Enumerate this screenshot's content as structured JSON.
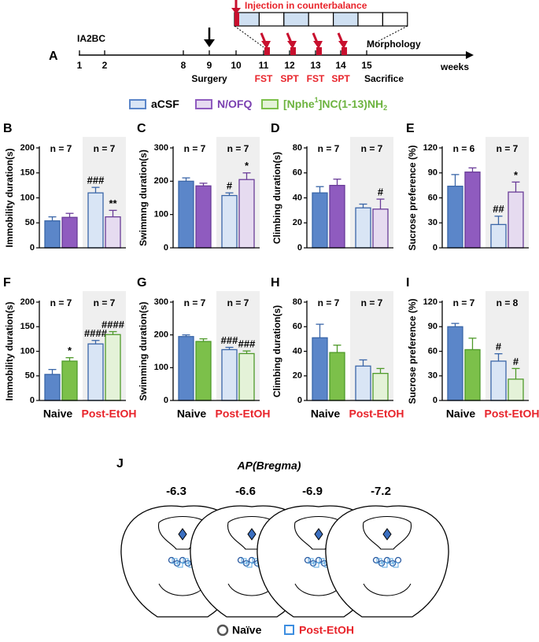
{
  "timeline": {
    "panel": "A",
    "start_label": "IA2BC",
    "weeks": [
      1,
      2,
      8,
      9,
      10,
      11,
      12,
      13,
      14,
      15
    ],
    "unit": "weeks",
    "injection": "Injection in counterbalance",
    "surgery": "Surgery",
    "sacrifice": "Sacrifice",
    "morphology": "Morphology",
    "tests": [
      "FST",
      "SPT",
      "FST",
      "SPT"
    ]
  },
  "legend": [
    {
      "name": [
        "aCSF"
      ],
      "shift": [
        "base"
      ],
      "color": "#5b86c9",
      "light": "#d9e5f5"
    },
    {
      "name": [
        "N/OFQ"
      ],
      "shift": [
        "base"
      ],
      "color": "#8f5bbf",
      "light": "#e6dbf0",
      "text_color": "#7a3fb0"
    },
    {
      "name": [
        "[Nphe",
        "1",
        "]NC(1-13)NH",
        "2"
      ],
      "shift": [
        "base",
        "super",
        "base",
        "sub"
      ],
      "color": "#7cc04a",
      "light": "#e4f2d8",
      "text_color": "#6db33f"
    }
  ],
  "chart_data": [
    {
      "type": "bar",
      "panel": "B",
      "ylabel": "Immobility duration(s)",
      "ylim": [
        0,
        200
      ],
      "yticks": [
        0,
        50,
        100,
        150,
        200
      ],
      "n_labels": [
        "n = 7",
        "n = 7"
      ],
      "series": [
        {
          "color": "#5b86c9",
          "light": "#d9e5f5",
          "edge": "#3a66a8",
          "values": [
            54,
            110
          ],
          "errors": [
            8,
            11
          ],
          "marks": [
            null,
            "###"
          ]
        },
        {
          "color": "#8f5bbf",
          "light": "#e6dbf0",
          "edge": "#6a3c98",
          "values": [
            61,
            62
          ],
          "errors": [
            8,
            13
          ],
          "marks": [
            null,
            "**"
          ]
        }
      ]
    },
    {
      "type": "bar",
      "panel": "C",
      "ylabel": "Swimmng duration(s)",
      "ylim": [
        0,
        300
      ],
      "yticks": [
        0,
        100,
        200,
        300
      ],
      "n_labels": [
        "n = 7",
        "n = 7"
      ],
      "series": [
        {
          "color": "#5b86c9",
          "light": "#d9e5f5",
          "edge": "#3a66a8",
          "values": [
            200,
            157
          ],
          "errors": [
            10,
            8
          ],
          "marks": [
            null,
            "#"
          ]
        },
        {
          "color": "#8f5bbf",
          "light": "#e6dbf0",
          "edge": "#6a3c98",
          "values": [
            186,
            205
          ],
          "errors": [
            8,
            20
          ],
          "marks": [
            null,
            "*"
          ]
        }
      ]
    },
    {
      "type": "bar",
      "panel": "D",
      "ylabel": "Climbing duration(s)",
      "ylim": [
        0,
        80
      ],
      "yticks": [
        0,
        20,
        40,
        60,
        80
      ],
      "n_labels": [
        "n = 7",
        "n = 7"
      ],
      "series": [
        {
          "color": "#5b86c9",
          "light": "#d9e5f5",
          "edge": "#3a66a8",
          "values": [
            44,
            32
          ],
          "errors": [
            5,
            3
          ],
          "marks": [
            null,
            null
          ]
        },
        {
          "color": "#8f5bbf",
          "light": "#e6dbf0",
          "edge": "#6a3c98",
          "values": [
            50,
            31
          ],
          "errors": [
            5,
            8
          ],
          "marks": [
            null,
            "#"
          ]
        }
      ]
    },
    {
      "type": "bar",
      "panel": "E",
      "ylabel": "Sucrose preference (%)",
      "ylim": [
        0,
        120
      ],
      "yticks": [
        0,
        30,
        60,
        90,
        120
      ],
      "n_labels": [
        "n = 6",
        "n = 7"
      ],
      "series": [
        {
          "color": "#5b86c9",
          "light": "#d9e5f5",
          "edge": "#3a66a8",
          "values": [
            74,
            28
          ],
          "errors": [
            14,
            10
          ],
          "marks": [
            null,
            "##"
          ]
        },
        {
          "color": "#8f5bbf",
          "light": "#e6dbf0",
          "edge": "#6a3c98",
          "values": [
            91,
            67
          ],
          "errors": [
            5,
            12
          ],
          "marks": [
            null,
            "*"
          ]
        }
      ]
    },
    {
      "type": "bar",
      "panel": "F",
      "ylabel": "Immobility duration(s)",
      "ylim": [
        0,
        200
      ],
      "yticks": [
        0,
        50,
        100,
        150,
        200
      ],
      "n_labels": [
        "n = 7",
        "n = 7"
      ],
      "categories": [
        "Naive",
        "Post-EtOH"
      ],
      "category_colors": [
        "#000000",
        "#e8232a"
      ],
      "series": [
        {
          "color": "#5b86c9",
          "light": "#d9e5f5",
          "edge": "#3a66a8",
          "values": [
            53,
            115
          ],
          "errors": [
            10,
            7
          ],
          "marks": [
            null,
            "####"
          ]
        },
        {
          "color": "#7cc04a",
          "light": "#e4f2d8",
          "edge": "#4f9a2a",
          "values": [
            80,
            134
          ],
          "errors": [
            7,
            6
          ],
          "marks": [
            "*",
            "####"
          ]
        }
      ]
    },
    {
      "type": "bar",
      "panel": "G",
      "ylabel": "Swimming duration(s)",
      "ylim": [
        0,
        300
      ],
      "yticks": [
        0,
        100,
        200,
        300
      ],
      "n_labels": [
        "n = 7",
        "n = 7"
      ],
      "categories": [
        "Naive",
        "Post-EtOH"
      ],
      "category_colors": [
        "#000000",
        "#e8232a"
      ],
      "series": [
        {
          "color": "#5b86c9",
          "light": "#d9e5f5",
          "edge": "#3a66a8",
          "values": [
            195,
            155
          ],
          "errors": [
            5,
            7
          ],
          "marks": [
            null,
            "###"
          ]
        },
        {
          "color": "#7cc04a",
          "light": "#e4f2d8",
          "edge": "#4f9a2a",
          "values": [
            180,
            143
          ],
          "errors": [
            8,
            8
          ],
          "marks": [
            null,
            "###"
          ]
        }
      ]
    },
    {
      "type": "bar",
      "panel": "H",
      "ylabel": "Climbing duration(s)",
      "ylim": [
        0,
        80
      ],
      "yticks": [
        0,
        20,
        40,
        60,
        80
      ],
      "n_labels": [
        "n = 7",
        "n = 7"
      ],
      "categories": [
        "Naive",
        "Post-EtOH"
      ],
      "category_colors": [
        "#000000",
        "#e8232a"
      ],
      "series": [
        {
          "color": "#5b86c9",
          "light": "#d9e5f5",
          "edge": "#3a66a8",
          "values": [
            51,
            28
          ],
          "errors": [
            11,
            5
          ],
          "marks": [
            null,
            null
          ]
        },
        {
          "color": "#7cc04a",
          "light": "#e4f2d8",
          "edge": "#4f9a2a",
          "values": [
            39,
            22
          ],
          "errors": [
            6,
            4
          ],
          "marks": [
            null,
            null
          ]
        }
      ]
    },
    {
      "type": "bar",
      "panel": "I",
      "ylabel": "Sucrose preference (%)",
      "ylim": [
        0,
        120
      ],
      "yticks": [
        0,
        30,
        60,
        90,
        120
      ],
      "n_labels": [
        "n = 7",
        "n = 8"
      ],
      "categories": [
        "Naive",
        "Post-EtOH"
      ],
      "category_colors": [
        "#000000",
        "#e8232a"
      ],
      "series": [
        {
          "color": "#5b86c9",
          "light": "#d9e5f5",
          "edge": "#3a66a8",
          "values": [
            90,
            48
          ],
          "errors": [
            4,
            9
          ],
          "marks": [
            null,
            "#"
          ]
        },
        {
          "color": "#7cc04a",
          "light": "#e4f2d8",
          "edge": "#4f9a2a",
          "values": [
            62,
            26
          ],
          "errors": [
            14,
            13
          ],
          "marks": [
            null,
            "#"
          ]
        }
      ]
    }
  ],
  "panel_j": {
    "panel": "J",
    "title": "AP(Bregma)",
    "sections": [
      "-6.3",
      "-6.6",
      "-6.9",
      "-7.2"
    ],
    "legend": [
      "Naïve",
      "Post-EtOH"
    ]
  }
}
